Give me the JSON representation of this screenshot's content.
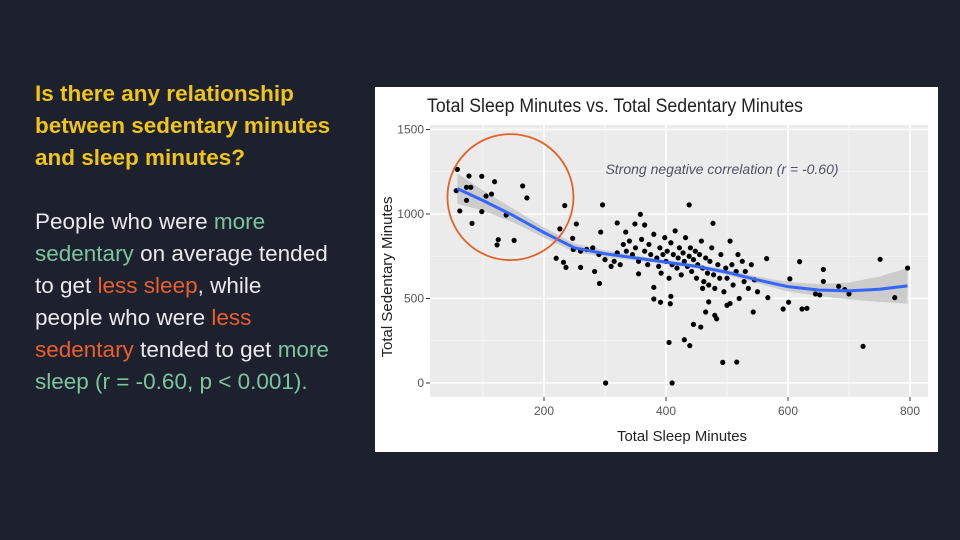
{
  "slide": {
    "question": "Is there any relationship between sedentary minutes and sleep minutes?",
    "body_segments": [
      {
        "text": "People who were ",
        "color": "white"
      },
      {
        "text": "more sedentary",
        "color": "green"
      },
      {
        "text": " on average tended to get ",
        "color": "white"
      },
      {
        "text": "less sleep",
        "color": "orange"
      },
      {
        "text": ", while people who were ",
        "color": "white"
      },
      {
        "text": "less sedentary",
        "color": "orange"
      },
      {
        "text": " tended to get ",
        "color": "white"
      },
      {
        "text": "more sleep (r = -0.60, p < 0.001).",
        "color": "green"
      }
    ],
    "colors": {
      "background": "#1c212d",
      "question": "#f0c419",
      "green": "#7cc4a1",
      "orange": "#ea5f2c",
      "white": "#e9e9ee"
    }
  },
  "chart_data": {
    "type": "scatter",
    "title": "Total Sleep Minutes vs. Total Sedentary Minutes",
    "xlabel": "Total Sleep Minutes",
    "ylabel": "Total Sedentary Minutes",
    "xlim": [
      20,
      830
    ],
    "ylim": [
      -60,
      1530
    ],
    "xticks": [
      200,
      400,
      600,
      800
    ],
    "yticks": [
      0,
      500,
      1000,
      1500
    ],
    "grid": true,
    "annotation": "Strong negative correlation (r = -0.60)",
    "highlight_circle": {
      "center": [
        145,
        1100
      ],
      "color": "#e2622a"
    },
    "point_color": "#000000",
    "smooth_color": "#3366ff",
    "points": [
      [
        58,
        1264
      ],
      [
        56,
        1138
      ],
      [
        62,
        1018
      ],
      [
        77,
        1225
      ],
      [
        73,
        1158
      ],
      [
        80,
        1158
      ],
      [
        73,
        1081
      ],
      [
        82,
        945
      ],
      [
        98,
        1223
      ],
      [
        98,
        1014
      ],
      [
        114,
        1118
      ],
      [
        105,
        1106
      ],
      [
        119,
        1191
      ],
      [
        125,
        848
      ],
      [
        123,
        817
      ],
      [
        151,
        844
      ],
      [
        165,
        1166
      ],
      [
        172,
        1095
      ],
      [
        138,
        994
      ],
      [
        234,
        1050
      ],
      [
        226,
        912
      ],
      [
        253,
        941
      ],
      [
        247,
        856
      ],
      [
        220,
        738
      ],
      [
        232,
        714
      ],
      [
        236,
        684
      ],
      [
        260,
        684
      ],
      [
        296,
        1054
      ],
      [
        293,
        893
      ],
      [
        291,
        589
      ],
      [
        283,
        660
      ],
      [
        301,
        0
      ],
      [
        320,
        947
      ],
      [
        334,
        893
      ],
      [
        349,
        941
      ],
      [
        358,
        998
      ],
      [
        365,
        935
      ],
      [
        355,
        646
      ],
      [
        380,
        497
      ],
      [
        391,
        478
      ],
      [
        380,
        566
      ],
      [
        407,
        469
      ],
      [
        405,
        240
      ],
      [
        410,
        0
      ],
      [
        408,
        513
      ],
      [
        438,
        1054
      ],
      [
        430,
        256
      ],
      [
        439,
        221
      ],
      [
        445,
        347
      ],
      [
        457,
        331
      ],
      [
        477,
        945
      ],
      [
        465,
        420
      ],
      [
        480,
        400
      ],
      [
        483,
        380
      ],
      [
        493,
        122
      ],
      [
        516,
        124
      ],
      [
        543,
        420
      ],
      [
        565,
        736
      ],
      [
        567,
        505
      ],
      [
        592,
        438
      ],
      [
        601,
        478
      ],
      [
        603,
        616
      ],
      [
        619,
        718
      ],
      [
        623,
        438
      ],
      [
        631,
        442
      ],
      [
        645,
        527
      ],
      [
        652,
        521
      ],
      [
        658,
        672
      ],
      [
        658,
        601
      ],
      [
        683,
        572
      ],
      [
        693,
        553
      ],
      [
        700,
        527
      ],
      [
        723,
        217
      ],
      [
        751,
        732
      ],
      [
        775,
        505
      ],
      [
        796,
        680
      ],
      [
        330,
        820
      ],
      [
        335,
        780
      ],
      [
        340,
        840
      ],
      [
        345,
        760
      ],
      [
        350,
        800
      ],
      [
        355,
        720
      ],
      [
        360,
        850
      ],
      [
        365,
        780
      ],
      [
        370,
        700
      ],
      [
        372,
        820
      ],
      [
        375,
        760
      ],
      [
        380,
        880
      ],
      [
        385,
        740
      ],
      [
        388,
        690
      ],
      [
        390,
        800
      ],
      [
        392,
        650
      ],
      [
        395,
        760
      ],
      [
        398,
        860
      ],
      [
        400,
        720
      ],
      [
        402,
        780
      ],
      [
        405,
        620
      ],
      [
        408,
        830
      ],
      [
        410,
        700
      ],
      [
        412,
        760
      ],
      [
        415,
        900
      ],
      [
        418,
        680
      ],
      [
        420,
        740
      ],
      [
        422,
        800
      ],
      [
        425,
        640
      ],
      [
        428,
        770
      ],
      [
        430,
        720
      ],
      [
        432,
        860
      ],
      [
        435,
        690
      ],
      [
        438,
        750
      ],
      [
        440,
        800
      ],
      [
        442,
        660
      ],
      [
        445,
        730
      ],
      [
        448,
        780
      ],
      [
        450,
        620
      ],
      [
        452,
        700
      ],
      [
        455,
        760
      ],
      [
        458,
        840
      ],
      [
        460,
        680
      ],
      [
        462,
        600
      ],
      [
        465,
        740
      ],
      [
        468,
        650
      ],
      [
        470,
        580
      ],
      [
        472,
        720
      ],
      [
        475,
        800
      ],
      [
        478,
        640
      ],
      [
        480,
        560
      ],
      [
        485,
        700
      ],
      [
        488,
        620
      ],
      [
        490,
        760
      ],
      [
        495,
        540
      ],
      [
        498,
        680
      ],
      [
        500,
        620
      ],
      [
        505,
        840
      ],
      [
        508,
        700
      ],
      [
        510,
        580
      ],
      [
        515,
        660
      ],
      [
        518,
        760
      ],
      [
        520,
        500
      ],
      [
        525,
        720
      ],
      [
        528,
        600
      ],
      [
        530,
        660
      ],
      [
        535,
        560
      ],
      [
        540,
        700
      ],
      [
        545,
        610
      ],
      [
        550,
        540
      ],
      [
        310,
        690
      ],
      [
        315,
        720
      ],
      [
        320,
        770
      ],
      [
        325,
        700
      ],
      [
        270,
        790
      ],
      [
        280,
        800
      ],
      [
        290,
        760
      ],
      [
        300,
        730
      ],
      [
        248,
        790
      ],
      [
        260,
        780
      ],
      [
        500,
        460
      ],
      [
        505,
        470
      ],
      [
        460,
        560
      ],
      [
        470,
        480
      ]
    ],
    "smooth_line": {
      "x": [
        58,
        100,
        150,
        200,
        250,
        300,
        350,
        400,
        450,
        500,
        550,
        600,
        650,
        700,
        750,
        796
      ],
      "y": [
        1150,
        1080,
        990,
        890,
        800,
        765,
        740,
        715,
        690,
        655,
        610,
        570,
        550,
        545,
        555,
        575
      ],
      "ci_halfwidth": [
        90,
        60,
        40,
        30,
        25,
        20,
        15,
        12,
        12,
        15,
        20,
        28,
        35,
        50,
        75,
        105
      ]
    }
  }
}
